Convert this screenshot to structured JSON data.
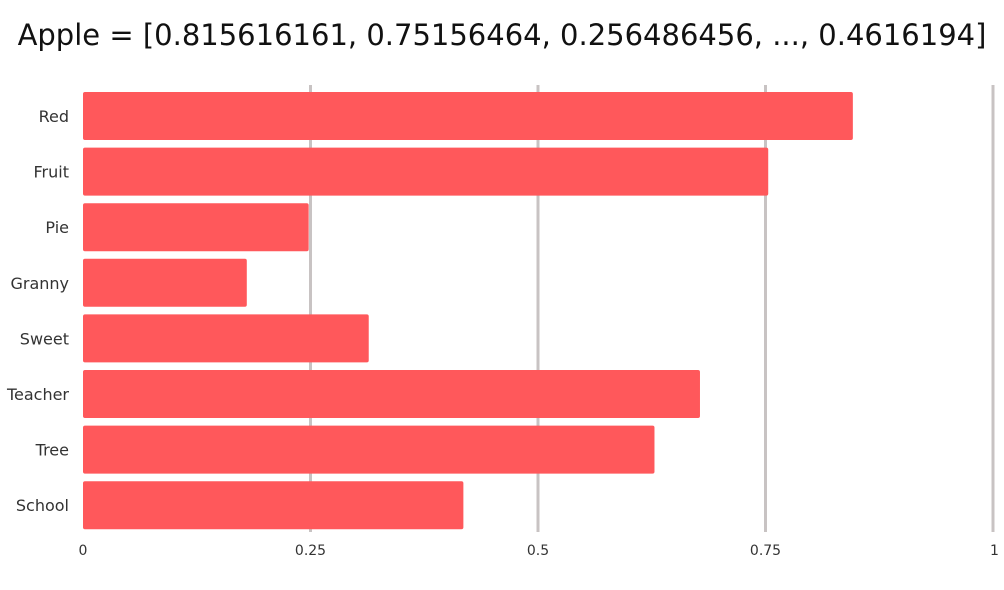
{
  "chart_data": {
    "type": "bar",
    "orientation": "horizontal",
    "title": "Apple = [0.815616161, 0.75156464, 0.256486456, ..., 0.4616194]",
    "xlabel": "",
    "ylabel": "",
    "categories": [
      "Red",
      "Fruit",
      "Pie",
      "Granny",
      "Sweet",
      "Teacher",
      "Tree",
      "School"
    ],
    "values": [
      0.846,
      0.753,
      0.248,
      0.18,
      0.314,
      0.678,
      0.628,
      0.418
    ],
    "xlim": [
      0,
      1
    ],
    "x_ticks": [
      0,
      0.25,
      0.5,
      0.75,
      1
    ],
    "x_tick_labels": [
      "0",
      "0.25",
      "0.5",
      "0.75",
      "1"
    ],
    "grid": "vertical",
    "legend": "none",
    "bar_color": "#ff585b",
    "grid_color": "#c8c3c3"
  }
}
